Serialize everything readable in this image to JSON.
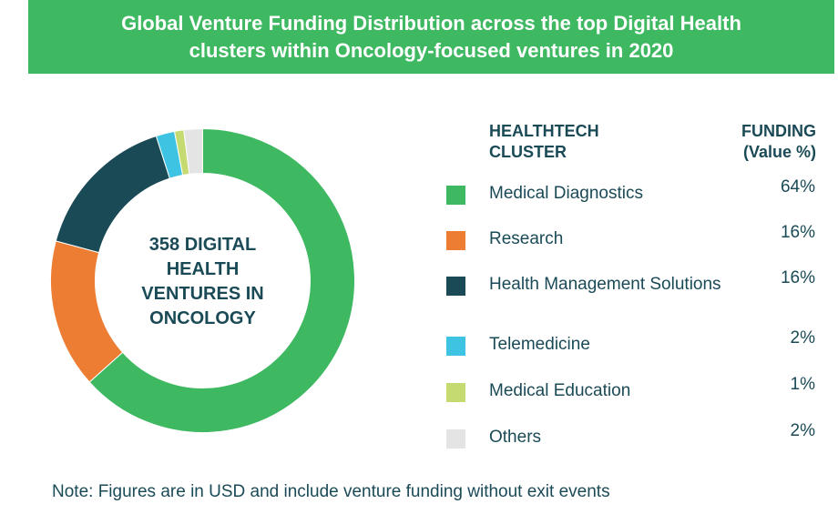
{
  "title_lines": [
    "Global Venture Funding Distribution across the top Digital Health",
    "clusters within Oncology-focused ventures  in 2020"
  ],
  "center_label_lines": [
    "358 DIGITAL",
    "HEALTH",
    "VENTURES IN",
    "ONCOLOGY"
  ],
  "legend_headers": {
    "cluster": [
      "HEALTHTECH",
      "CLUSTER"
    ],
    "funding": [
      "FUNDING",
      "(Value %)"
    ]
  },
  "note": "Note:  Figures are in USD and include venture funding without exit events",
  "chart_data": {
    "type": "pie",
    "title": "Global Venture Funding Distribution across the top Digital Health clusters within Oncology-focused ventures  in 2020",
    "categories": [
      "Medical Diagnostics",
      "Research",
      "Health Management Solutions",
      "Telemedicine",
      "Medical Education",
      "Others"
    ],
    "values": [
      64,
      16,
      16,
      2,
      1,
      2
    ],
    "value_labels": [
      "64%",
      "16%",
      "16%",
      "2%",
      "1%",
      "2%"
    ],
    "colors": [
      "#3fb862",
      "#ed7d32",
      "#1b4a57",
      "#3ec4e2",
      "#c5da70",
      "#e4e4e4"
    ],
    "style": "donut",
    "legend": "right"
  }
}
